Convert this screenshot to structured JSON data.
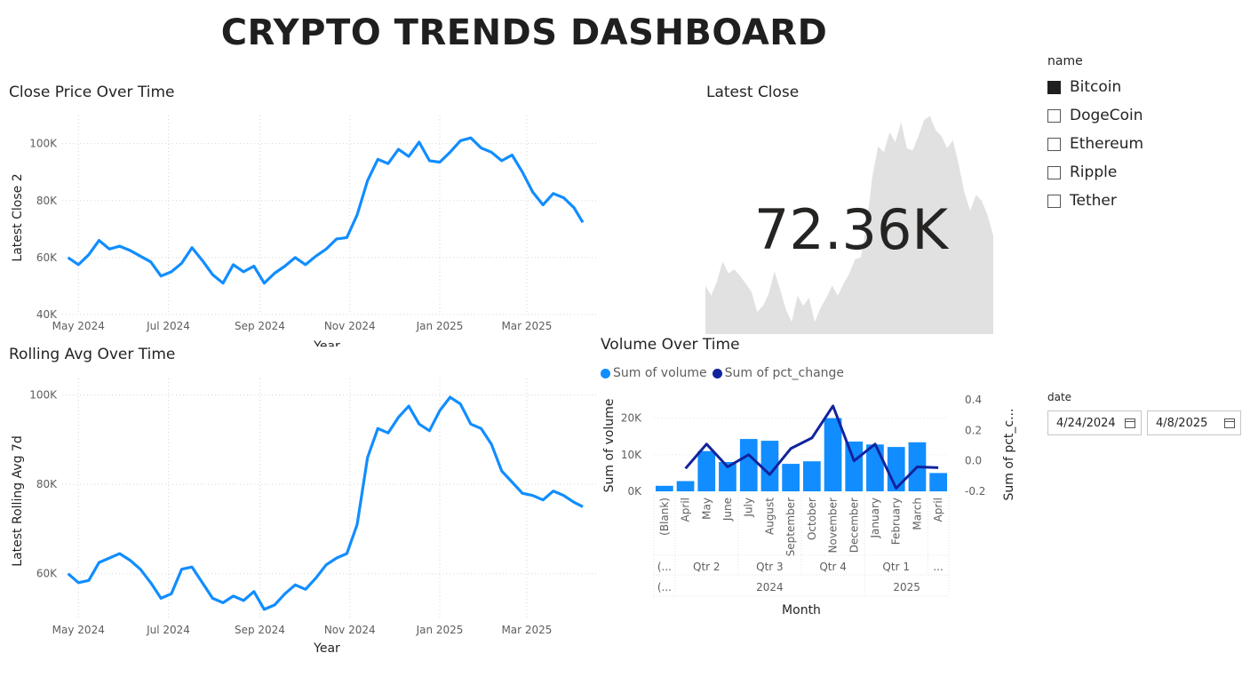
{
  "dashboard": {
    "title": "CRYPTO TRENDS DASHBOARD"
  },
  "close_chart": {
    "title": "Close Price Over Time",
    "ylabel": "Latest Close 2",
    "xlabel": "Year",
    "yticks": [
      "100K",
      "80K",
      "60K",
      "40K"
    ],
    "xticks": [
      "May 2024",
      "Jul 2024",
      "Sep 2024",
      "Nov 2024",
      "Jan 2025",
      "Mar 2025"
    ],
    "line_color": "#118DFF"
  },
  "rolling_chart": {
    "title": "Rolling Avg Over Time",
    "ylabel": "Latest Rolling Avg 7d",
    "xlabel": "Year",
    "yticks": [
      "100K",
      "80K",
      "60K"
    ],
    "xticks": [
      "May 2024",
      "Jul 2024",
      "Sep 2024",
      "Nov 2024",
      "Jan 2025",
      "Mar 2025"
    ],
    "line_color": "#118DFF"
  },
  "kpi": {
    "title": "Latest Close",
    "value": "72.36K",
    "sparkline_color": "#e1e1e1"
  },
  "volume_chart": {
    "title": "Volume Over Time",
    "legend": [
      {
        "label": "Sum of volume",
        "color": "#118DFF"
      },
      {
        "label": "Sum of pct_change",
        "color": "#12239E"
      }
    ],
    "ylabel_left": "Sum of volume",
    "ylabel_right": "Sum of pct_c...",
    "yticks_left": [
      "20K",
      "10K",
      "0K"
    ],
    "yticks_right": [
      "0.4",
      "0.2",
      "0.0",
      "-0.2"
    ],
    "months": [
      "(Blank)",
      "April",
      "May",
      "June",
      "July",
      "August",
      "September",
      "October",
      "November",
      "December",
      "January",
      "February",
      "March",
      "April"
    ],
    "quarters": [
      "(...",
      "Qtr 2",
      "Qtr 3",
      "Qtr 4",
      "Qtr 1",
      "..."
    ],
    "years": [
      "(...",
      "2024",
      "2025"
    ],
    "xlabel": "Month"
  },
  "slicer": {
    "header": "name",
    "items": [
      {
        "label": "Bitcoin",
        "checked": true
      },
      {
        "label": "DogeCoin",
        "checked": false
      },
      {
        "label": "Ethereum",
        "checked": false
      },
      {
        "label": "Ripple",
        "checked": false
      },
      {
        "label": "Tether",
        "checked": false
      }
    ]
  },
  "date_slicer": {
    "header": "date",
    "start": "4/24/2024",
    "end": "4/8/2025"
  },
  "chart_data": [
    {
      "type": "line",
      "title": "Close Price Over Time",
      "xlabel": "Year",
      "ylabel": "Latest Close 2",
      "ylim": [
        40000,
        108000
      ],
      "xlim": [
        "2024-04-20",
        "2025-04-14"
      ],
      "x": [
        "2024-04-24",
        "2024-05-01",
        "2024-05-08",
        "2024-05-15",
        "2024-05-22",
        "2024-05-29",
        "2024-06-05",
        "2024-06-12",
        "2024-06-19",
        "2024-06-26",
        "2024-07-03",
        "2024-07-10",
        "2024-07-17",
        "2024-07-24",
        "2024-07-31",
        "2024-08-07",
        "2024-08-14",
        "2024-08-21",
        "2024-08-28",
        "2024-09-04",
        "2024-09-11",
        "2024-09-18",
        "2024-09-25",
        "2024-10-02",
        "2024-10-09",
        "2024-10-16",
        "2024-10-23",
        "2024-10-30",
        "2024-11-06",
        "2024-11-13",
        "2024-11-20",
        "2024-11-27",
        "2024-12-04",
        "2024-12-11",
        "2024-12-18",
        "2024-12-25",
        "2025-01-01",
        "2025-01-08",
        "2025-01-15",
        "2025-01-22",
        "2025-01-29",
        "2025-02-05",
        "2025-02-12",
        "2025-02-19",
        "2025-02-26",
        "2025-03-05",
        "2025-03-12",
        "2025-03-19",
        "2025-03-26",
        "2025-04-02",
        "2025-04-08"
      ],
      "series": [
        {
          "values": [
            60000,
            57500,
            61000,
            66000,
            63000,
            64000,
            62500,
            60500,
            58500,
            53500,
            55000,
            58000,
            63500,
            59000,
            54000,
            51000,
            57500,
            55000,
            57000,
            51000,
            54500,
            57000,
            60000,
            57500,
            60500,
            63000,
            66500,
            67000,
            75000,
            87000,
            94500,
            93000,
            98000,
            95500,
            100500,
            94000,
            93500,
            97000,
            101000,
            102000,
            98500,
            97000,
            94000,
            96000,
            90000,
            83000,
            78500,
            82500,
            81000,
            77500,
            72360
          ]
        }
      ]
    },
    {
      "type": "line",
      "title": "Rolling Avg Over Time",
      "xlabel": "Year",
      "ylabel": "Latest Rolling Avg 7d",
      "ylim": [
        50000,
        102500
      ],
      "xlim": [
        "2024-04-20",
        "2025-04-14"
      ],
      "x": [
        "2024-04-24",
        "2024-05-01",
        "2024-05-08",
        "2024-05-15",
        "2024-05-22",
        "2024-05-29",
        "2024-06-05",
        "2024-06-12",
        "2024-06-19",
        "2024-06-26",
        "2024-07-03",
        "2024-07-10",
        "2024-07-17",
        "2024-07-24",
        "2024-07-31",
        "2024-08-07",
        "2024-08-14",
        "2024-08-21",
        "2024-08-28",
        "2024-09-04",
        "2024-09-11",
        "2024-09-18",
        "2024-09-25",
        "2024-10-02",
        "2024-10-09",
        "2024-10-16",
        "2024-10-23",
        "2024-10-30",
        "2024-11-06",
        "2024-11-13",
        "2024-11-20",
        "2024-11-27",
        "2024-12-04",
        "2024-12-11",
        "2024-12-18",
        "2024-12-25",
        "2025-01-01",
        "2025-01-08",
        "2025-01-15",
        "2025-01-22",
        "2025-01-29",
        "2025-02-05",
        "2025-02-12",
        "2025-02-19",
        "2025-02-26",
        "2025-03-05",
        "2025-03-12",
        "2025-03-19",
        "2025-03-26",
        "2025-04-02",
        "2025-04-08"
      ],
      "series": [
        {
          "values": [
            60000,
            58000,
            58500,
            62500,
            63500,
            64500,
            63000,
            61000,
            58000,
            54500,
            55500,
            61000,
            61500,
            58000,
            54500,
            53500,
            55000,
            54000,
            56000,
            52000,
            53000,
            55500,
            57500,
            56500,
            59000,
            62000,
            63500,
            64500,
            71000,
            86000,
            92500,
            91500,
            95000,
            97500,
            93500,
            92000,
            96500,
            99500,
            98000,
            93500,
            92500,
            89000,
            83000,
            80500,
            78000,
            77500,
            76500,
            78500,
            77500,
            76000,
            75000
          ]
        }
      ]
    },
    {
      "type": "bar",
      "title": "Volume Over Time",
      "xlabel": "Month",
      "ylabel": "Sum of volume",
      "categories": [
        "(Blank)",
        "April",
        "May",
        "June",
        "July",
        "August",
        "September",
        "October",
        "November",
        "December",
        "January",
        "February",
        "March",
        "April"
      ],
      "ylim": [
        0,
        25000
      ],
      "y2lim": [
        -0.2,
        0.4
      ],
      "series": [
        {
          "name": "Sum of volume",
          "type": "bar",
          "values": [
            1500,
            2800,
            11000,
            8000,
            14300,
            13800,
            7500,
            8200,
            20000,
            13600,
            12800,
            12100,
            13400,
            5000
          ]
        },
        {
          "name": "Sum of pct_change",
          "type": "line",
          "axis": "right",
          "values": [
            null,
            -0.05,
            0.11,
            -0.04,
            0.04,
            -0.09,
            0.08,
            0.15,
            0.36,
            0.0,
            0.11,
            -0.18,
            -0.04,
            -0.045
          ]
        }
      ]
    }
  ]
}
